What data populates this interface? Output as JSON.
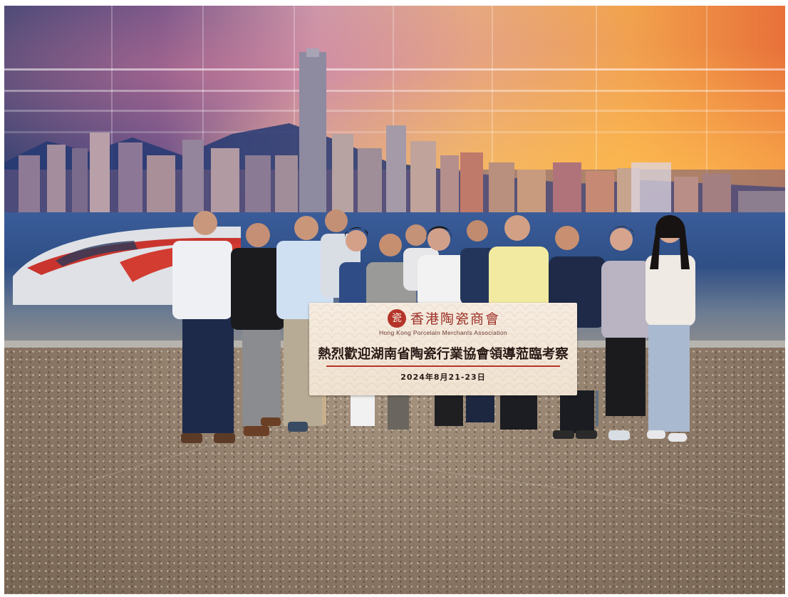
{
  "photo": {
    "scene": "group photo in front of skyline mural",
    "accent_colors": {
      "banner_red": "#b5342a",
      "banner_bg": "#f3e7d8",
      "floor": "#8a7664"
    }
  },
  "banner": {
    "logo_glyph": "瓷",
    "org_name_cn": "香港陶瓷商會",
    "org_name_en": "Hong Kong Porcelain Merchants Association",
    "headline": "熱烈歡迎湖南省陶瓷行業協會領導蒞臨考察",
    "date": "2024年8月21-23日"
  }
}
